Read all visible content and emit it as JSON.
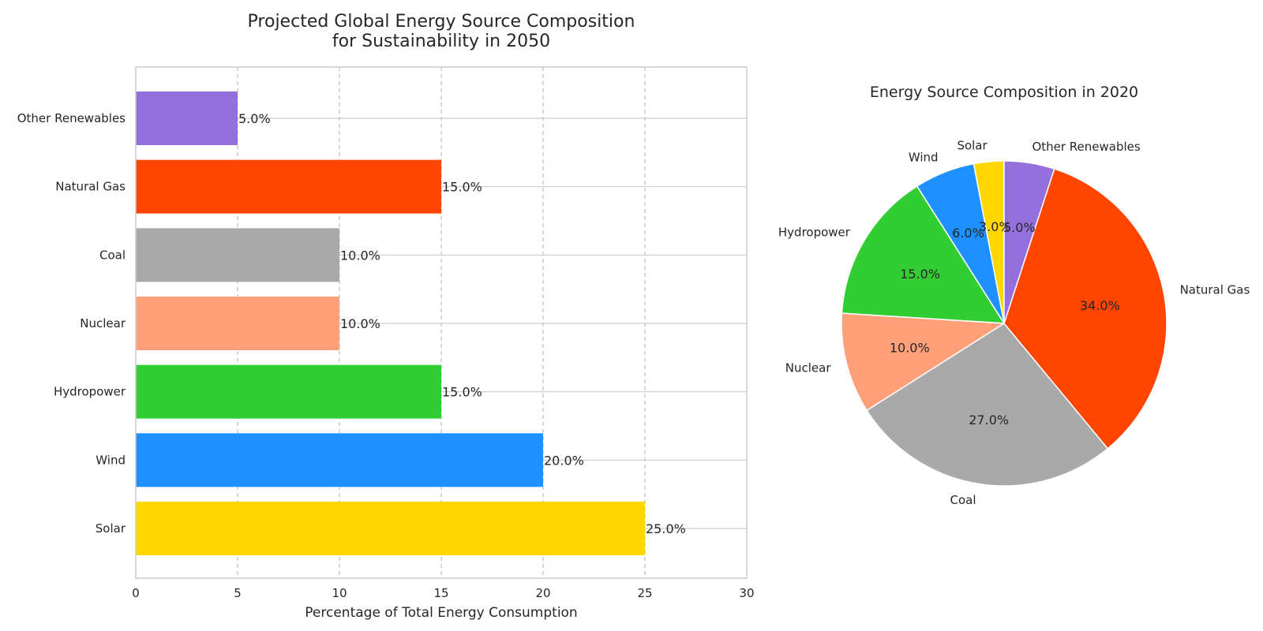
{
  "chart_data": [
    {
      "type": "bar",
      "orientation": "horizontal",
      "title": "Projected Global Energy Source Composition\nfor Sustainability in 2050",
      "xlabel": "Percentage of Total Energy Consumption",
      "ylabel": "",
      "xlim": [
        0,
        30
      ],
      "xticks": [
        0,
        5,
        10,
        15,
        20,
        25,
        30
      ],
      "grid": true,
      "categories": [
        "Solar",
        "Wind",
        "Hydropower",
        "Nuclear",
        "Coal",
        "Natural Gas",
        "Other Renewables"
      ],
      "values": [
        25,
        20,
        15,
        10,
        10,
        15,
        5
      ],
      "data_labels": [
        "25.0%",
        "20.0%",
        "15.0%",
        "10.0%",
        "10.0%",
        "15.0%",
        "5.0%"
      ],
      "colors": [
        "#FFD700",
        "#1E90FF",
        "#32CD32",
        "#FFA07A",
        "#A9A9A9",
        "#FF4500",
        "#9370DB"
      ]
    },
    {
      "type": "pie",
      "title": "Energy Source Composition in 2020",
      "categories": [
        "Solar",
        "Wind",
        "Hydropower",
        "Nuclear",
        "Coal",
        "Natural Gas",
        "Other Renewables"
      ],
      "values": [
        3,
        6,
        15,
        10,
        27,
        34,
        5
      ],
      "data_labels": [
        "3.0%",
        "6.0%",
        "15.0%",
        "10.0%",
        "27.0%",
        "34.0%",
        "5.0%"
      ],
      "colors": [
        "#FFD700",
        "#1E90FF",
        "#32CD32",
        "#FFA07A",
        "#A9A9A9",
        "#FF4500",
        "#9370DB"
      ],
      "start_angle": 90,
      "direction": "counterclockwise"
    }
  ]
}
